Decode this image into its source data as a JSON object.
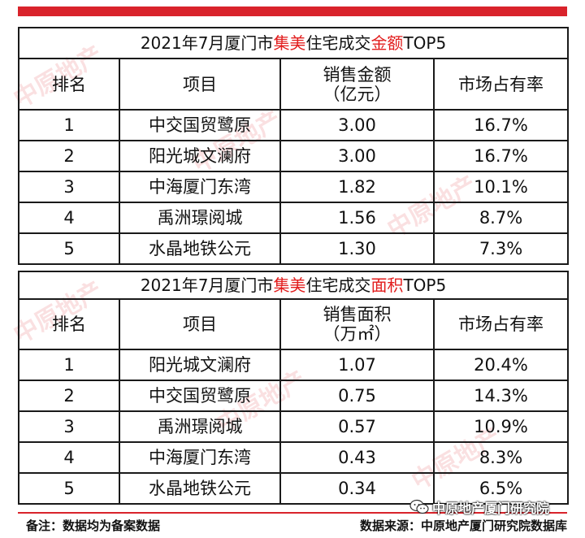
{
  "tables": [
    {
      "title_parts": {
        "pre": "2021年7月厦门市",
        "hl1": "集美",
        "mid": "住宅成交",
        "hl2": "金额",
        "post": "TOP5"
      },
      "headers": {
        "rank": "排名",
        "project": "项目",
        "value_line1": "销售金额",
        "value_line2": "（亿元）",
        "share": "市场占有率"
      },
      "rows": [
        {
          "rank": "1",
          "project": "中交国贸鹭原",
          "value": "3.00",
          "share": "16.7%"
        },
        {
          "rank": "2",
          "project": "阳光城文澜府",
          "value": "3.00",
          "share": "16.7%"
        },
        {
          "rank": "3",
          "project": "中海厦门东湾",
          "value": "1.82",
          "share": "10.1%"
        },
        {
          "rank": "4",
          "project": "禹洲璟阅城",
          "value": "1.56",
          "share": "8.7%"
        },
        {
          "rank": "5",
          "project": "水晶地铁公元",
          "value": "1.30",
          "share": "7.3%"
        }
      ]
    },
    {
      "title_parts": {
        "pre": "2021年7月厦门市",
        "hl1": "集美",
        "mid": "住宅成交",
        "hl2": "面积",
        "post": "TOP5"
      },
      "headers": {
        "rank": "排名",
        "project": "项目",
        "value_line1": "销售面积",
        "value_line2": "（万㎡）",
        "share": "市场占有率"
      },
      "rows": [
        {
          "rank": "1",
          "project": "阳光城文澜府",
          "value": "1.07",
          "share": "20.4%"
        },
        {
          "rank": "2",
          "project": "中交国贸鹭原",
          "value": "0.75",
          "share": "14.3%"
        },
        {
          "rank": "3",
          "project": "禹洲璟阅城",
          "value": "0.57",
          "share": "10.9%"
        },
        {
          "rank": "4",
          "project": "中海厦门东湾",
          "value": "0.43",
          "share": "8.3%"
        },
        {
          "rank": "5",
          "project": "水晶地铁公元",
          "value": "0.34",
          "share": "6.5%"
        }
      ]
    }
  ],
  "footer": {
    "note": "备注：数据均为备案数据",
    "source": "数据来源：中原地产厦门研究院数据库"
  },
  "wechat_badge": {
    "icon": "wechat-icon",
    "text": "中原地产厦门研究院"
  },
  "watermark": {
    "text": "中原地产"
  },
  "colors": {
    "accent_red": "#d9232b",
    "highlight_red": "#e21c1c"
  }
}
